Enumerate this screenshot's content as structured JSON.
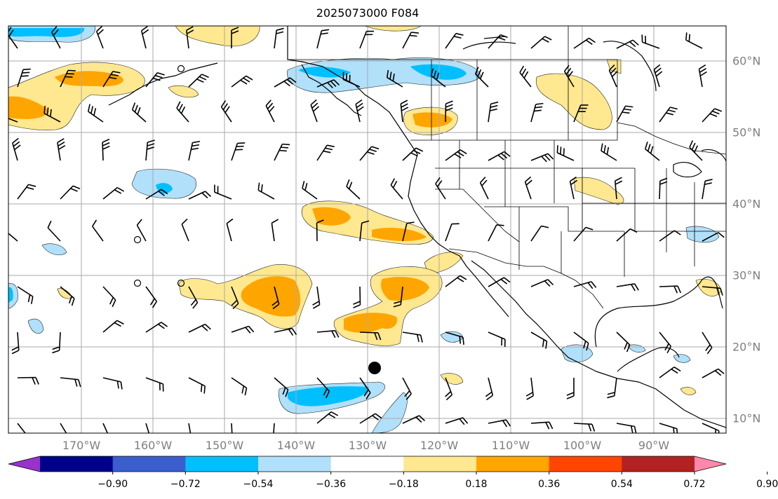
{
  "title": "2025073000 F084",
  "lon_labels": [
    "170°W",
    "160°W",
    "150°W",
    "140°W",
    "130°W",
    "120°W",
    "110°W",
    "100°W",
    "90°W"
  ],
  "lat_labels": [
    "60°N",
    "50°N",
    "40°N",
    "30°N",
    "20°N",
    "10°N"
  ],
  "colorbar": {
    "ticks": [
      "−0.90",
      "−0.72",
      "−0.54",
      "−0.36",
      "−0.18",
      "0.18",
      "0.36",
      "0.54",
      "0.72",
      "0.90"
    ],
    "colors": [
      "#9932cc",
      "#00008b",
      "#3a5fcd",
      "#00bfff",
      "#b0e0fa",
      "#ffffff",
      "#ffe88f",
      "#ffa500",
      "#ff4500",
      "#b22222",
      "#ff88aa"
    ]
  },
  "map": {
    "projection": "lat-lon",
    "lon_range": [
      "180°W",
      "80°W"
    ],
    "lat_range": [
      "8°N",
      "66°N"
    ],
    "grid": true,
    "storm_marker": {
      "lon": "129°W",
      "lat": "17°N"
    }
  }
}
